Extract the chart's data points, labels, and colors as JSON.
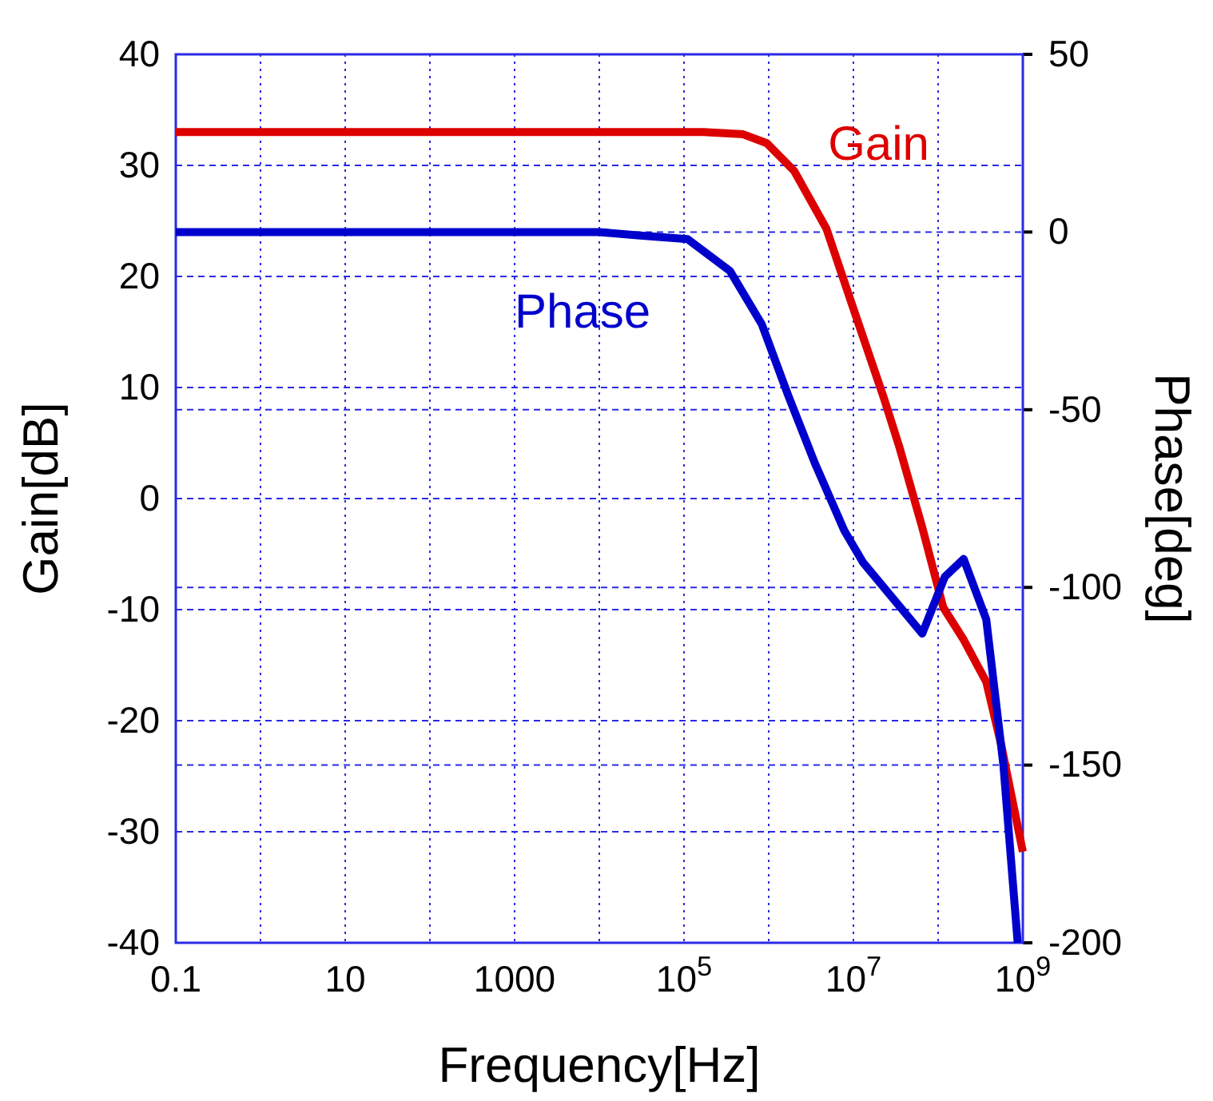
{
  "chart_data": {
    "type": "line",
    "xlabel": "Frequency[Hz]",
    "ylabel": "Gain[dB]",
    "y2label": "Phase[deg]",
    "log": "x",
    "grid": true,
    "line_style": "solid",
    "marker": "none",
    "xlim": [
      0.1,
      1000000000
    ],
    "xticks": [
      {
        "value": 0.1,
        "label": "0.1"
      },
      {
        "value": 1,
        "label": null
      },
      {
        "value": 10,
        "label": "10"
      },
      {
        "value": 100,
        "label": null
      },
      {
        "value": 1000,
        "label": "1000"
      },
      {
        "value": 10000,
        "label": null
      },
      {
        "value": 100000,
        "label": "10$^{5}$"
      },
      {
        "value": 1000000,
        "label": null
      },
      {
        "value": 10000000,
        "label": "10$^{7}$"
      },
      {
        "value": 100000000,
        "label": null
      },
      {
        "value": 1000000000,
        "label": "10$^{9}$"
      }
    ],
    "ylim": [
      -40,
      40
    ],
    "yticks": [
      -40,
      -30,
      -20,
      -10,
      0,
      10,
      20,
      30,
      40
    ],
    "y2lim": [
      -200,
      50
    ],
    "y2ticks": [
      -200,
      -150,
      -100,
      -50,
      0,
      50
    ],
    "series": [
      {
        "name": "Gain",
        "color": "#dd0000",
        "x": [
          0.1,
          10000,
          170000,
          500000,
          950000,
          2000000,
          4800000,
          9500000,
          23000000,
          35000000,
          65000000,
          115000000,
          200000000,
          370000000,
          560000000,
          1000000000
        ],
        "values": [
          33,
          33,
          33,
          32.8,
          32,
          29.5,
          24.3,
          17.6,
          9,
          4.6,
          -2.6,
          -9.8,
          -12.7,
          -16.5,
          -22.3,
          -31.8
        ]
      },
      {
        "name": "Phase",
        "color": "#0000cc",
        "axis": "y2",
        "x": [
          0.1,
          10000,
          30000,
          110000,
          350000,
          830000,
          1700000,
          3500000,
          7800000,
          13000000,
          65000000,
          120000000,
          200000000,
          370000000,
          590000000,
          870000000
        ],
        "values": [
          0,
          0,
          -1,
          -2,
          -11,
          -26,
          -46,
          -65,
          -84,
          -93,
          -113,
          -97,
          -92,
          -109,
          -150,
          -200
        ]
      }
    ]
  }
}
